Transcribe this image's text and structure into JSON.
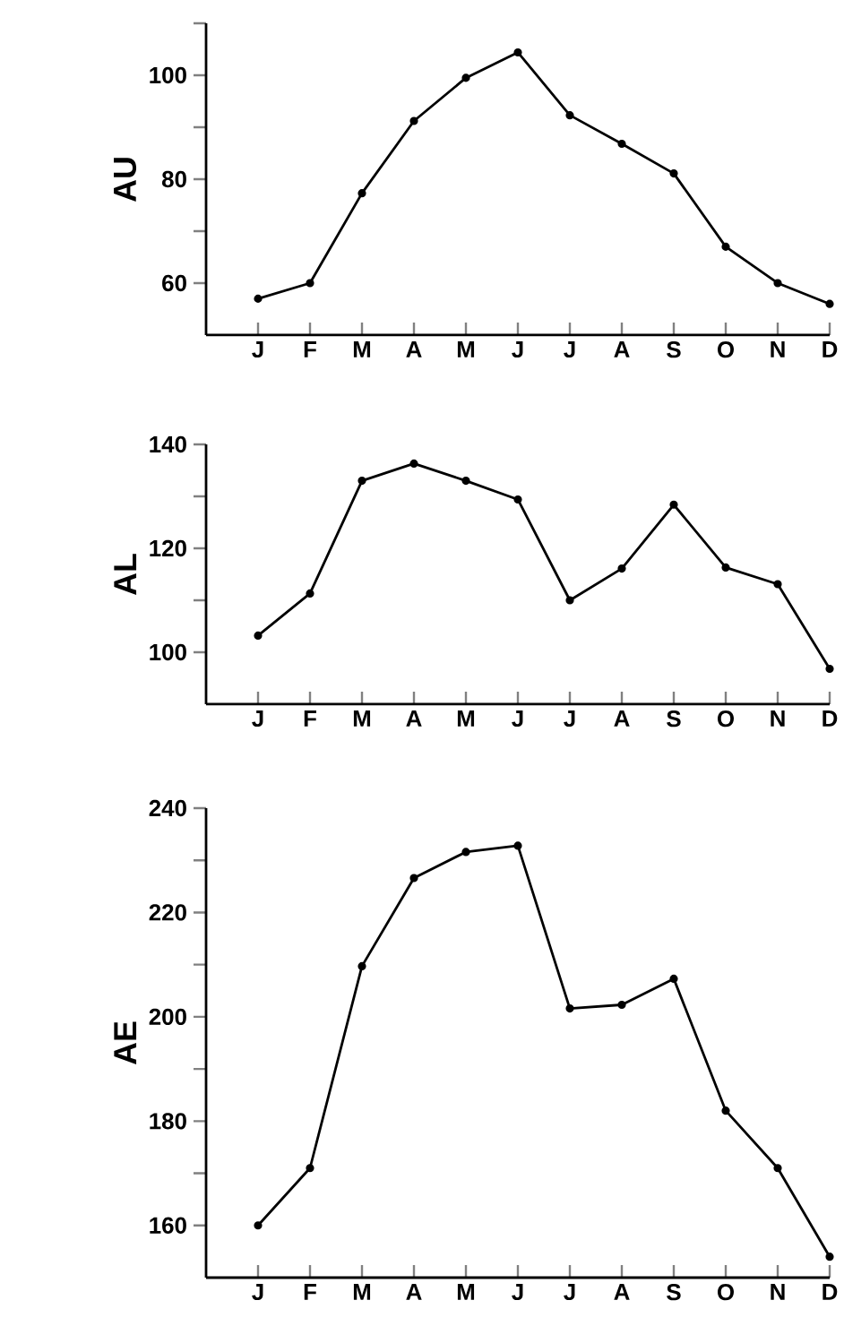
{
  "chart_data": [
    {
      "type": "line",
      "ylabel": "AU",
      "categories": [
        "J",
        "F",
        "M",
        "A",
        "M",
        "J",
        "J",
        "A",
        "S",
        "O",
        "N",
        "D"
      ],
      "values": [
        57,
        60,
        77.3,
        91.2,
        99.5,
        104.4,
        92.3,
        86.8,
        81.1,
        67,
        60,
        56
      ],
      "color": "#000000",
      "marker": "circle",
      "ylim": [
        50,
        110
      ],
      "yticks": [
        60,
        {
          "value": 70,
          "label": null
        },
        80,
        {
          "value": 90,
          "label": null
        },
        100,
        {
          "value": 110,
          "label": null
        }
      ]
    },
    {
      "type": "line",
      "ylabel": "AL",
      "categories": [
        "J",
        "F",
        "M",
        "A",
        "M",
        "J",
        "J",
        "A",
        "S",
        "O",
        "N",
        "D"
      ],
      "values": [
        103.2,
        111.3,
        133,
        136.3,
        133,
        129.4,
        110,
        116.1,
        128.4,
        116.3,
        113.1,
        96.8
      ],
      "color": "#000000",
      "marker": "circle",
      "ylim": [
        90,
        140
      ],
      "yticks": [
        100,
        {
          "value": 110,
          "label": null
        },
        120,
        {
          "value": 130,
          "label": null
        },
        140
      ]
    },
    {
      "type": "line",
      "ylabel": "AE",
      "categories": [
        "J",
        "F",
        "M",
        "A",
        "M",
        "J",
        "J",
        "A",
        "S",
        "O",
        "N",
        "D"
      ],
      "values": [
        160,
        171,
        209.7,
        226.6,
        231.6,
        232.8,
        201.6,
        202.3,
        207.3,
        182,
        171,
        154
      ],
      "color": "#000000",
      "marker": "circle",
      "ylim": [
        150,
        240
      ],
      "yticks": [
        160,
        {
          "value": 170,
          "label": null
        },
        180,
        {
          "value": 190,
          "label": null
        },
        200,
        {
          "value": 210,
          "label": null
        },
        220,
        {
          "value": 230,
          "label": null
        },
        240
      ]
    }
  ]
}
